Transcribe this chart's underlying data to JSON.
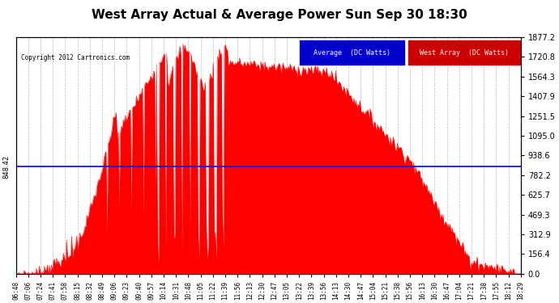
{
  "title": "West Array Actual & Average Power Sun Sep 30 18:30",
  "copyright": "Copyright 2012 Cartronics.com",
  "bg_color": "#ffffff",
  "plot_bg_color": "#ffffff",
  "grid_color": "#aaaaaa",
  "avg_line_value": 848.42,
  "avg_line_color": "#0000ff",
  "fill_color": "#ff0000",
  "line_color": "#ff0000",
  "yticks": [
    0.0,
    156.4,
    312.9,
    469.3,
    625.7,
    782.2,
    938.6,
    1095.0,
    1251.5,
    1407.9,
    1564.3,
    1720.8,
    1877.2
  ],
  "ylim": [
    0,
    1877.2
  ],
  "legend_avg_color": "#0000cc",
  "legend_west_color": "#cc0000",
  "xtick_labels": [
    "06:48",
    "07:06",
    "07:24",
    "07:41",
    "07:58",
    "08:15",
    "08:32",
    "08:49",
    "09:06",
    "09:23",
    "09:40",
    "09:57",
    "10:14",
    "10:31",
    "10:48",
    "11:05",
    "11:22",
    "11:39",
    "11:56",
    "12:13",
    "12:30",
    "12:47",
    "13:05",
    "13:22",
    "13:39",
    "13:56",
    "14:13",
    "14:30",
    "14:47",
    "15:04",
    "15:21",
    "15:38",
    "15:56",
    "16:13",
    "16:30",
    "16:47",
    "17:04",
    "17:21",
    "17:38",
    "17:55",
    "18:12",
    "18:29"
  ],
  "title_color": "#000000",
  "tick_color": "#000000",
  "spine_color": "#000000"
}
